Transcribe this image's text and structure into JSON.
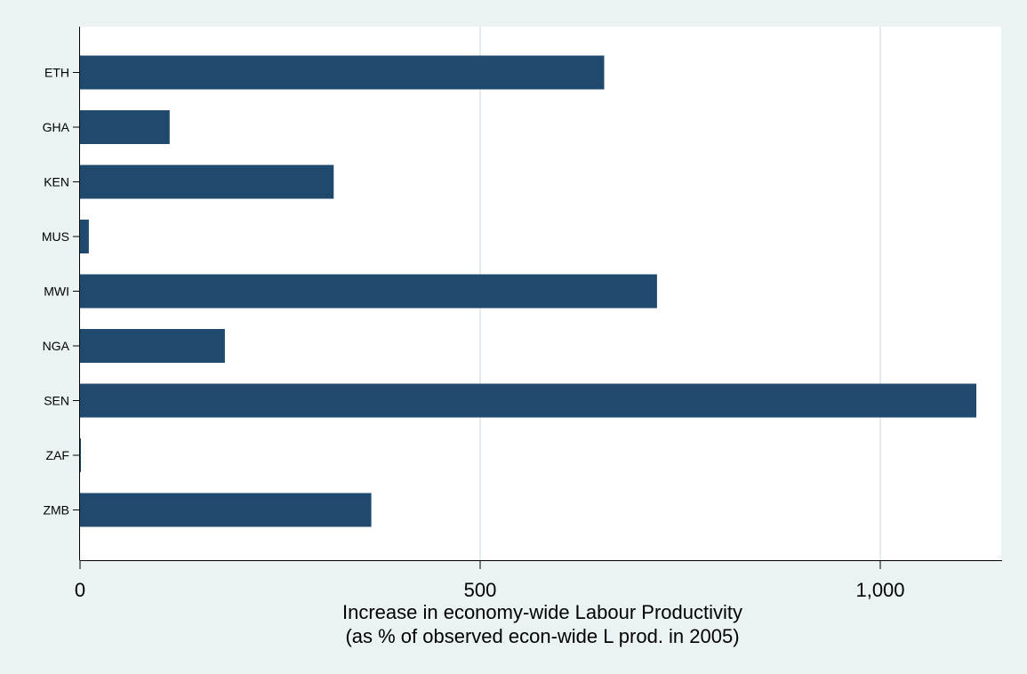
{
  "chart_data": {
    "type": "bar",
    "orientation": "horizontal",
    "categories": [
      "ETH",
      "GHA",
      "KEN",
      "MUS",
      "MWI",
      "NGA",
      "SEN",
      "ZAF",
      "ZMB"
    ],
    "values": [
      655,
      112,
      317,
      11,
      721,
      181,
      1120,
      1,
      364
    ],
    "xlabel": [
      "Increase in economy-wide Labour Productivity",
      "(as % of observed econ-wide L prod. in 2005)"
    ],
    "xticks": [
      0,
      500,
      1000
    ],
    "xtick_labels": [
      "0",
      "500",
      "1,000"
    ],
    "xlim": [
      0,
      1150
    ],
    "grid": true,
    "bar_color": "#1f4a6e",
    "background_color": "#eaf2f3",
    "plot_background_color": "#ffffff"
  }
}
